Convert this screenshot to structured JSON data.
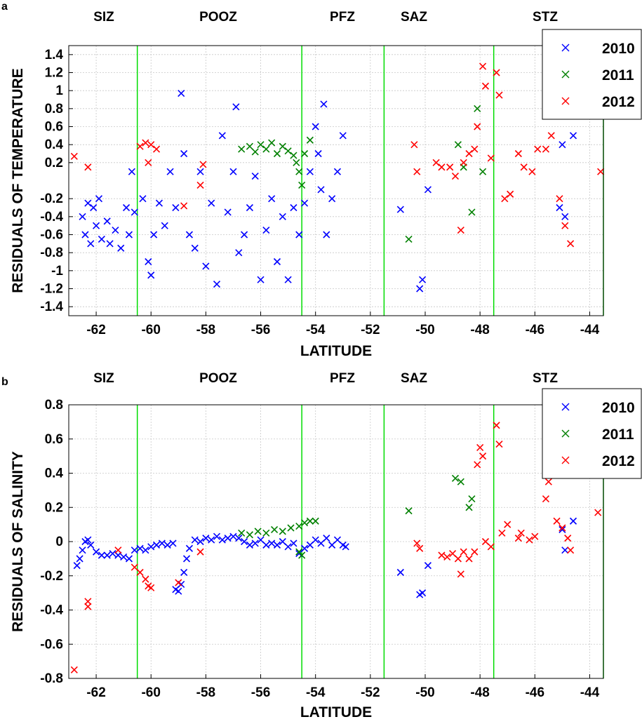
{
  "colors": {
    "2010": "#0000ff",
    "2011": "#008000",
    "2012": "#ff0000",
    "front_line": "#00dd00",
    "grid": "#c8c8c8"
  },
  "chart_data": [
    {
      "type": "scatter",
      "panel_label": "a",
      "xlabel": "LATITUDE",
      "ylabel": "RESIDUALS OF TEMPERATURE",
      "xlim": [
        -63,
        -43.5
      ],
      "ylim": [
        -1.5,
        1.5
      ],
      "x_ticks": [
        -62,
        -60,
        -58,
        -56,
        -54,
        -52,
        -50,
        -48,
        -46,
        -44
      ],
      "y_ticks": [
        -1.4,
        -1.2,
        -1,
        -0.8,
        -0.6,
        -0.4,
        -0.2,
        0.2,
        0.4,
        0.6,
        0.8,
        1,
        1.2,
        1.4
      ],
      "grid": true,
      "legend_position": "top-right",
      "zones": [
        "SIZ",
        "POOZ",
        "PFZ",
        "SAZ",
        "STZ"
      ],
      "fronts": [
        -60.5,
        -54.5,
        -51.5,
        -47.5,
        -43.5
      ],
      "series": [
        {
          "name": "2010",
          "points": [
            [
              -62.5,
              -0.4
            ],
            [
              -62.4,
              -0.6
            ],
            [
              -62.3,
              -0.25
            ],
            [
              -62.2,
              -0.7
            ],
            [
              -62.1,
              -0.3
            ],
            [
              -62,
              -0.5
            ],
            [
              -61.9,
              -0.2
            ],
            [
              -61.8,
              -0.65
            ],
            [
              -61.6,
              -0.45
            ],
            [
              -61.5,
              -0.7
            ],
            [
              -61.3,
              -0.55
            ],
            [
              -61.1,
              -0.75
            ],
            [
              -60.9,
              -0.3
            ],
            [
              -60.8,
              -0.6
            ],
            [
              -60.7,
              0.1
            ],
            [
              -60.6,
              -0.35
            ],
            [
              -60.3,
              -0.2
            ],
            [
              -60.1,
              -0.9
            ],
            [
              -60,
              -1.05
            ],
            [
              -59.9,
              -0.6
            ],
            [
              -59.7,
              -0.25
            ],
            [
              -59.5,
              -0.5
            ],
            [
              -59.3,
              0.1
            ],
            [
              -59.1,
              -0.3
            ],
            [
              -58.9,
              0.97
            ],
            [
              -58.8,
              0.3
            ],
            [
              -58.6,
              -0.6
            ],
            [
              -58.4,
              -0.75
            ],
            [
              -58.2,
              0.1
            ],
            [
              -58,
              -0.95
            ],
            [
              -57.8,
              -0.25
            ],
            [
              -57.6,
              -1.15
            ],
            [
              -57.4,
              0.5
            ],
            [
              -57.2,
              -0.35
            ],
            [
              -57,
              0.1
            ],
            [
              -56.9,
              0.82
            ],
            [
              -56.8,
              -0.8
            ],
            [
              -56.6,
              -0.6
            ],
            [
              -56.4,
              -0.3
            ],
            [
              -56.2,
              0.05
            ],
            [
              -56,
              -1.1
            ],
            [
              -55.8,
              -0.55
            ],
            [
              -55.6,
              -0.2
            ],
            [
              -55.4,
              -0.9
            ],
            [
              -55.2,
              -0.4
            ],
            [
              -55,
              -1.1
            ],
            [
              -54.8,
              -0.3
            ],
            [
              -54.6,
              -0.6
            ],
            [
              -54.4,
              -0.25
            ],
            [
              -54.2,
              0.1
            ],
            [
              -54,
              0.6
            ],
            [
              -53.9,
              0.3
            ],
            [
              -53.8,
              -0.1
            ],
            [
              -53.7,
              0.85
            ],
            [
              -53.6,
              -0.6
            ],
            [
              -53.4,
              -0.2
            ],
            [
              -53.2,
              0.1
            ],
            [
              -53,
              0.5
            ],
            [
              -50.9,
              -0.32
            ],
            [
              -50.2,
              -1.2
            ],
            [
              -50.1,
              -1.1
            ],
            [
              -49.9,
              -0.1
            ],
            [
              -45.1,
              -0.3
            ],
            [
              -45,
              0.4
            ],
            [
              -44.9,
              -0.4
            ],
            [
              -44.6,
              0.5
            ]
          ]
        },
        {
          "name": "2011",
          "points": [
            [
              -56.7,
              0.35
            ],
            [
              -56.4,
              0.38
            ],
            [
              -56.2,
              0.32
            ],
            [
              -56,
              0.4
            ],
            [
              -55.8,
              0.35
            ],
            [
              -55.6,
              0.42
            ],
            [
              -55.4,
              0.3
            ],
            [
              -55.2,
              0.38
            ],
            [
              -55,
              0.33
            ],
            [
              -54.8,
              0.28
            ],
            [
              -54.7,
              0.2
            ],
            [
              -54.6,
              0.1
            ],
            [
              -54.5,
              -0.05
            ],
            [
              -54.4,
              0.3
            ],
            [
              -54.2,
              0.45
            ],
            [
              -50.6,
              -0.65
            ],
            [
              -48.8,
              0.4
            ],
            [
              -48.6,
              0.15
            ],
            [
              -48.3,
              -0.35
            ],
            [
              -48.1,
              0.8
            ],
            [
              -47.9,
              0.1
            ]
          ]
        },
        {
          "name": "2012",
          "points": [
            [
              -62.8,
              0.27
            ],
            [
              -62.3,
              0.15
            ],
            [
              -60.4,
              0.38
            ],
            [
              -60.2,
              0.42
            ],
            [
              -60,
              0.4
            ],
            [
              -59.8,
              0.35
            ],
            [
              -60.1,
              0.2
            ],
            [
              -58.8,
              -0.28
            ],
            [
              -58.2,
              -0.05
            ],
            [
              -58.1,
              0.18
            ],
            [
              -50.4,
              0.4
            ],
            [
              -50.3,
              0.1
            ],
            [
              -49.6,
              0.2
            ],
            [
              -49.4,
              0.15
            ],
            [
              -49.1,
              0.15
            ],
            [
              -48.9,
              0.05
            ],
            [
              -48.7,
              -0.55
            ],
            [
              -48.6,
              0.2
            ],
            [
              -48.4,
              0.3
            ],
            [
              -48.2,
              0.35
            ],
            [
              -48.1,
              0.6
            ],
            [
              -47.9,
              1.27
            ],
            [
              -47.8,
              1.05
            ],
            [
              -47.6,
              0.25
            ],
            [
              -47.4,
              1.2
            ],
            [
              -47.3,
              0.95
            ],
            [
              -47.1,
              -0.2
            ],
            [
              -46.9,
              -0.15
            ],
            [
              -46.6,
              0.3
            ],
            [
              -46.4,
              0.15
            ],
            [
              -46.1,
              0.1
            ],
            [
              -45.9,
              0.35
            ],
            [
              -45.6,
              0.35
            ],
            [
              -45.4,
              0.5
            ],
            [
              -45.1,
              -0.2
            ],
            [
              -44.9,
              -0.5
            ],
            [
              -44.7,
              -0.7
            ],
            [
              -43.6,
              0.1
            ]
          ]
        }
      ]
    },
    {
      "type": "scatter",
      "panel_label": "b",
      "xlabel": "LATITUDE",
      "ylabel": "RESIDUALS OF SALINITY",
      "xlim": [
        -63,
        -43.5
      ],
      "ylim": [
        -0.8,
        0.8
      ],
      "x_ticks": [
        -62,
        -60,
        -58,
        -56,
        -54,
        -52,
        -50,
        -48,
        -46,
        -44
      ],
      "y_ticks": [
        -0.8,
        -0.6,
        -0.4,
        -0.2,
        0,
        0.2,
        0.4,
        0.6,
        0.8
      ],
      "grid": true,
      "legend_position": "top-right",
      "zones": [
        "SIZ",
        "POOZ",
        "PFZ",
        "SAZ",
        "STZ"
      ],
      "fronts": [
        -60.5,
        -54.5,
        -51.5,
        -47.5,
        -43.5
      ],
      "series": [
        {
          "name": "2010",
          "points": [
            [
              -62.7,
              -0.14
            ],
            [
              -62.6,
              -0.1
            ],
            [
              -62.5,
              -0.05
            ],
            [
              -62.4,
              0
            ],
            [
              -62.3,
              0.01
            ],
            [
              -62.2,
              -0.02
            ],
            [
              -62,
              -0.06
            ],
            [
              -61.8,
              -0.08
            ],
            [
              -61.6,
              -0.08
            ],
            [
              -61.4,
              -0.07
            ],
            [
              -61.2,
              -0.08
            ],
            [
              -61,
              -0.09
            ],
            [
              -60.8,
              -0.1
            ],
            [
              -60.6,
              -0.05
            ],
            [
              -60.4,
              -0.04
            ],
            [
              -60.2,
              -0.05
            ],
            [
              -60,
              -0.03
            ],
            [
              -59.8,
              -0.02
            ],
            [
              -59.6,
              -0.01
            ],
            [
              -59.4,
              -0.02
            ],
            [
              -59.2,
              -0.01
            ],
            [
              -59.1,
              -0.28
            ],
            [
              -59,
              -0.29
            ],
            [
              -58.9,
              -0.25
            ],
            [
              -58.8,
              -0.18
            ],
            [
              -58.7,
              -0.1
            ],
            [
              -58.6,
              -0.04
            ],
            [
              -58.4,
              0.01
            ],
            [
              -58.2,
              0
            ],
            [
              -58,
              0.02
            ],
            [
              -57.8,
              0.01
            ],
            [
              -57.6,
              0.03
            ],
            [
              -57.4,
              0.01
            ],
            [
              -57.2,
              0.02
            ],
            [
              -57,
              0.03
            ],
            [
              -56.8,
              0.02
            ],
            [
              -56.6,
              0
            ],
            [
              -56.4,
              -0.02
            ],
            [
              -56.2,
              -0.01
            ],
            [
              -56,
              0.01
            ],
            [
              -55.8,
              -0.02
            ],
            [
              -55.6,
              -0.01
            ],
            [
              -55.4,
              -0.02
            ],
            [
              -55.2,
              0
            ],
            [
              -55,
              -0.03
            ],
            [
              -54.8,
              -0.01
            ],
            [
              -54.6,
              -0.07
            ],
            [
              -54.4,
              -0.04
            ],
            [
              -54.2,
              -0.02
            ],
            [
              -54,
              0.01
            ],
            [
              -53.8,
              -0.01
            ],
            [
              -53.6,
              0.02
            ],
            [
              -53.4,
              -0.02
            ],
            [
              -53.2,
              0.01
            ],
            [
              -53,
              -0.02
            ],
            [
              -52.9,
              -0.03
            ],
            [
              -50.9,
              -0.18
            ],
            [
              -50.2,
              -0.31
            ],
            [
              -50.1,
              -0.3
            ],
            [
              -49.9,
              -0.14
            ],
            [
              -45,
              0.07
            ],
            [
              -44.9,
              -0.05
            ],
            [
              -44.6,
              0.12
            ]
          ]
        },
        {
          "name": "2011",
          "points": [
            [
              -56.7,
              0.05
            ],
            [
              -56.4,
              0.04
            ],
            [
              -56.1,
              0.06
            ],
            [
              -55.8,
              0.05
            ],
            [
              -55.5,
              0.07
            ],
            [
              -55.2,
              0.06
            ],
            [
              -54.9,
              0.08
            ],
            [
              -54.6,
              0.09
            ],
            [
              -54.4,
              0.11
            ],
            [
              -54.2,
              0.12
            ],
            [
              -54,
              0.12
            ],
            [
              -54.6,
              -0.06
            ],
            [
              -54.5,
              -0.08
            ],
            [
              -50.6,
              0.18
            ],
            [
              -48.9,
              0.37
            ],
            [
              -48.7,
              0.35
            ],
            [
              -48.4,
              0.2
            ],
            [
              -48.3,
              0.25
            ]
          ]
        },
        {
          "name": "2012",
          "points": [
            [
              -62.8,
              -0.75
            ],
            [
              -62.3,
              -0.35
            ],
            [
              -62.3,
              -0.38
            ],
            [
              -61.2,
              -0.05
            ],
            [
              -60.6,
              -0.15
            ],
            [
              -60.4,
              -0.18
            ],
            [
              -60.2,
              -0.22
            ],
            [
              -60.1,
              -0.26
            ],
            [
              -60,
              -0.27
            ],
            [
              -59,
              -0.24
            ],
            [
              -58.2,
              -0.06
            ],
            [
              -50.3,
              -0.01
            ],
            [
              -50.2,
              -0.04
            ],
            [
              -49.4,
              -0.08
            ],
            [
              -49.2,
              -0.09
            ],
            [
              -49,
              -0.07
            ],
            [
              -48.8,
              -0.1
            ],
            [
              -48.7,
              -0.19
            ],
            [
              -48.6,
              -0.06
            ],
            [
              -48.4,
              -0.1
            ],
            [
              -48.2,
              -0.06
            ],
            [
              -48.1,
              0.45
            ],
            [
              -48,
              0.55
            ],
            [
              -47.9,
              0.5
            ],
            [
              -47.8,
              0
            ],
            [
              -47.6,
              -0.03
            ],
            [
              -47.4,
              0.68
            ],
            [
              -47.3,
              0.57
            ],
            [
              -47.2,
              0.05
            ],
            [
              -47,
              0.1
            ],
            [
              -46.6,
              0.02
            ],
            [
              -46.5,
              0.05
            ],
            [
              -46.2,
              0.01
            ],
            [
              -46,
              0.03
            ],
            [
              -45.6,
              0.25
            ],
            [
              -45.5,
              0.35
            ],
            [
              -45.4,
              0.4
            ],
            [
              -45.2,
              0.12
            ],
            [
              -45,
              0.08
            ],
            [
              -44.8,
              0.02
            ],
            [
              -44.7,
              -0.05
            ],
            [
              -43.7,
              0.17
            ]
          ]
        }
      ]
    }
  ]
}
